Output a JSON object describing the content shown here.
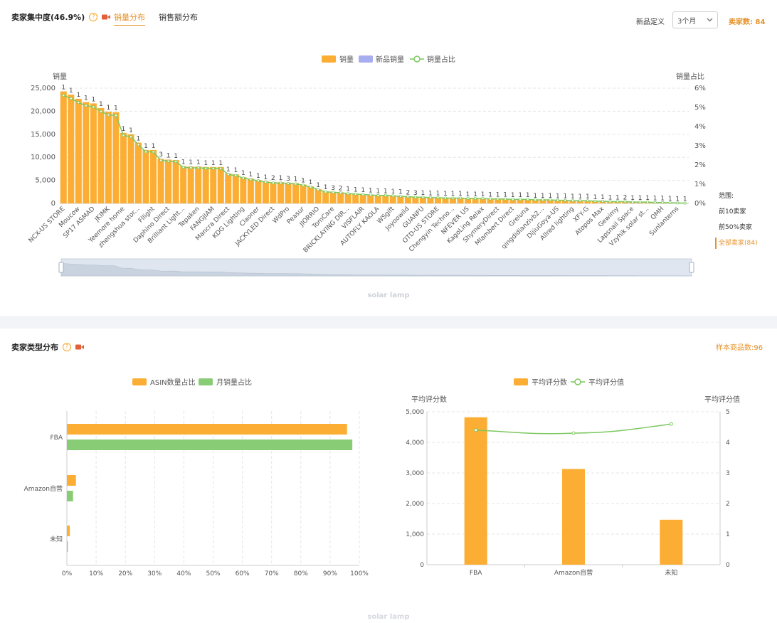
{
  "top": {
    "title": "卖家集中度(46.9%)",
    "tabs": [
      "销量分布",
      "销售额分布"
    ],
    "newdef_label": "新品定义",
    "newdef_value": "3个月",
    "seller_count": "卖家数: 84",
    "watermark": "solar lamp",
    "range_title": "范围:",
    "range_options": [
      "前10卖家",
      "前50%卖家",
      "全部卖家(84)"
    ]
  },
  "bottom": {
    "title": "卖家类型分布",
    "sample": "样本商品数:96",
    "watermark": "solar lamp"
  },
  "colors": {
    "orange": "#fbae33",
    "purple": "#a7aef0",
    "green": "#7cc85f",
    "accent": "#e6922a",
    "barGreen": "#89cc76"
  },
  "chart_data": [
    {
      "type": "bar",
      "legend": [
        "销量",
        "新品销量",
        "销量占比"
      ],
      "ylabel": "销量",
      "y2label": "销量占比",
      "ylim": [
        0,
        25000
      ],
      "y2lim": [
        0,
        6
      ],
      "yticks": [
        "0",
        "5,000",
        "10,000",
        "15,000",
        "20,000",
        "25,000"
      ],
      "y2ticks": [
        "0%",
        "1%",
        "2%",
        "3%",
        "4%",
        "5%",
        "6%"
      ],
      "x_labels_shown": [
        "NCX-US STORE",
        "Moucow",
        "SP17 ASMAD",
        "JKIMK",
        "Yeemore home",
        "zhengshua stor...",
        "Fllight",
        "Daphino Direct",
        "Brilliant Light...",
        "Tepaken",
        "FANGJIAM",
        "Mancra Direct",
        "KDG Lighting",
        "Claoner",
        "JACKYLED Direct",
        "WdPro",
        "Peasur",
        "JIORRIO",
        "TomCare",
        "BRICKLAYING DIR...",
        "VISFLAIR",
        "AUTOFLY KAOLA",
        "WSgift",
        "Joyoowild",
        "GUANFU",
        "OTD-US STORE",
        "Chengyin Techno...",
        "NFEVER US",
        "KagoLing Relax",
        "ShymeryDirect",
        "Mlambert Direct",
        "Greluna",
        "qingdidianzivb2...",
        "DijiuGoya-US",
        "Allred lighting",
        "XFY-G",
        "Atopos Max",
        "Gewimy",
        "Lapsnail Space",
        "Vzyhik solar st...",
        "QMH",
        "Sunlanterns"
      ],
      "values": [
        24300,
        23600,
        22700,
        22000,
        21700,
        20700,
        19900,
        19800,
        15300,
        15000,
        13200,
        11600,
        11600,
        9700,
        9500,
        9400,
        8100,
        8000,
        8000,
        7900,
        7900,
        7900,
        6500,
        6300,
        5700,
        5400,
        5100,
        4800,
        4600,
        4600,
        4500,
        4400,
        4100,
        3700,
        3100,
        2600,
        2500,
        2400,
        2200,
        2100,
        2000,
        1900,
        1800,
        1800,
        1700,
        1600,
        1500,
        1400,
        1400,
        1300,
        1300,
        1200,
        1200,
        1200,
        1100,
        1100,
        1100,
        1000,
        1000,
        1000,
        900,
        900,
        900,
        800,
        800,
        800,
        700,
        700,
        600,
        600,
        600,
        500,
        500,
        400,
        400,
        400,
        300,
        300,
        300,
        200,
        200,
        150,
        100,
        60
      ],
      "labels": [
        "1",
        "1",
        "1",
        "1",
        "1",
        "1",
        "1",
        "1",
        "1",
        "1",
        "1",
        "1",
        "1",
        "3",
        "1",
        "1",
        "1",
        "1",
        "1",
        "1",
        "1",
        "1",
        "1",
        "1",
        "1",
        "1",
        "1",
        "1",
        "2",
        "1",
        "3",
        "1",
        "1",
        "1",
        "1",
        "1",
        "3",
        "2",
        "1",
        "1",
        "1",
        "1",
        "1",
        "1",
        "1",
        "1",
        "2",
        "3",
        "1",
        "1",
        "1",
        "1",
        "1",
        "1",
        "1",
        "1",
        "1",
        "1",
        "1",
        "1",
        "1",
        "1",
        "1",
        "1",
        "1",
        "1",
        "1",
        "1",
        "1",
        "1",
        "1",
        "1",
        "1",
        "1",
        "1",
        "2",
        "1",
        "1",
        "1",
        "1",
        "1",
        "1",
        "1",
        "1"
      ]
    },
    {
      "type": "bar",
      "orientation": "horizontal",
      "legend": [
        "ASIN数量占比",
        "月销量占比"
      ],
      "categories": [
        "FBA",
        "Amazon自营",
        "未知"
      ],
      "series": [
        {
          "name": "ASIN数量占比",
          "values": [
            95.8,
            3.1,
            1.0
          ]
        },
        {
          "name": "月销量占比",
          "values": [
            97.6,
            2.1,
            0.3
          ]
        }
      ],
      "xticks": [
        "0%",
        "10%",
        "20%",
        "30%",
        "40%",
        "50%",
        "60%",
        "70%",
        "80%",
        "90%",
        "100%"
      ],
      "xlim": [
        0,
        100
      ]
    },
    {
      "type": "bar",
      "legend": [
        "平均评分数",
        "平均评分值"
      ],
      "categories": [
        "FBA",
        "Amazon自营",
        "未知"
      ],
      "ylabel": "平均评分数",
      "y2label": "平均评分值",
      "series": [
        {
          "name": "平均评分数",
          "values": [
            4820,
            3130,
            1470
          ]
        },
        {
          "name": "平均评分值",
          "values": [
            4.4,
            4.3,
            4.6
          ]
        }
      ],
      "yticks": [
        "0",
        "1,000",
        "2,000",
        "3,000",
        "4,000",
        "5,000"
      ],
      "y2ticks": [
        "0",
        "1",
        "2",
        "3",
        "4",
        "5"
      ],
      "ylim": [
        0,
        5000
      ],
      "y2lim": [
        0,
        5
      ]
    }
  ]
}
